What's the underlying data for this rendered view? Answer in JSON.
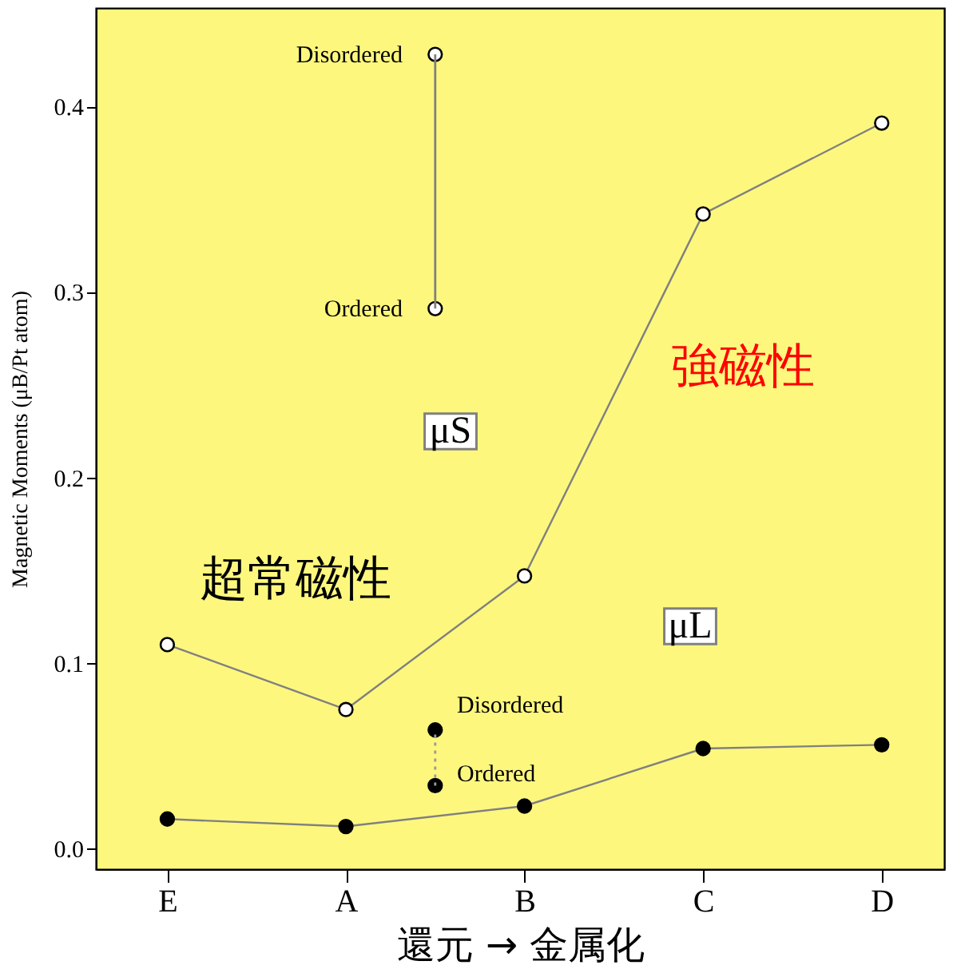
{
  "chart_data": {
    "type": "line",
    "ylabel": "Magnetic Moments   (μB/Pt atom)",
    "xlabel": "還元 → 金属化",
    "categories": [
      "E",
      null,
      "A",
      null,
      "B",
      null,
      "C",
      null,
      "D"
    ],
    "ylim": [
      -0.011,
      0.453
    ],
    "yticks": [
      {
        "value": 0,
        "label": "0.0"
      },
      {
        "value": 0.1,
        "label": "0.1"
      },
      {
        "value": 0.2,
        "label": "0.2"
      },
      {
        "value": 0.3,
        "label": "0.3"
      },
      {
        "value": 0.4,
        "label": "0.4"
      }
    ],
    "marker": "circle",
    "grid": false,
    "series": [
      {
        "color": "#ffffff",
        "values": [
          0.11,
          null,
          0.075,
          null,
          0.147,
          null,
          0.342,
          null,
          0.391
        ],
        "line_style": "solid"
      },
      {
        "color": "#000000",
        "values": [
          0.016,
          null,
          0.012,
          null,
          0.023,
          null,
          0.054,
          null,
          0.056
        ],
        "line_style": "solid"
      },
      {
        "color": "#ffffff",
        "values": [
          null,
          null,
          null,
          0.428,
          null,
          null,
          null,
          null,
          null
        ],
        "errors": [
          null,
          null,
          null,
          [
            0.291,
            0.428
          ],
          null,
          null,
          null,
          null,
          null
        ],
        "line_style": "solid"
      },
      {
        "color": "#ffffff",
        "values": [
          null,
          null,
          null,
          0.291,
          null,
          null,
          null,
          null,
          null
        ]
      },
      {
        "color": "#000000",
        "values": [
          null,
          null,
          null,
          0.064,
          null,
          null,
          null,
          null,
          null
        ],
        "errors": [
          null,
          null,
          null,
          [
            0.034,
            0.064
          ],
          null,
          null,
          null,
          null,
          null
        ],
        "line_style": "dotted"
      },
      {
        "color": "#000000",
        "values": [
          null,
          null,
          null,
          0.034,
          null,
          null,
          null,
          null,
          null
        ]
      }
    ],
    "annotations": [
      "Disordered",
      "Ordered",
      "Disordered",
      "Ordered",
      "μS",
      "μL",
      "超常磁性",
      "強磁性"
    ]
  }
}
